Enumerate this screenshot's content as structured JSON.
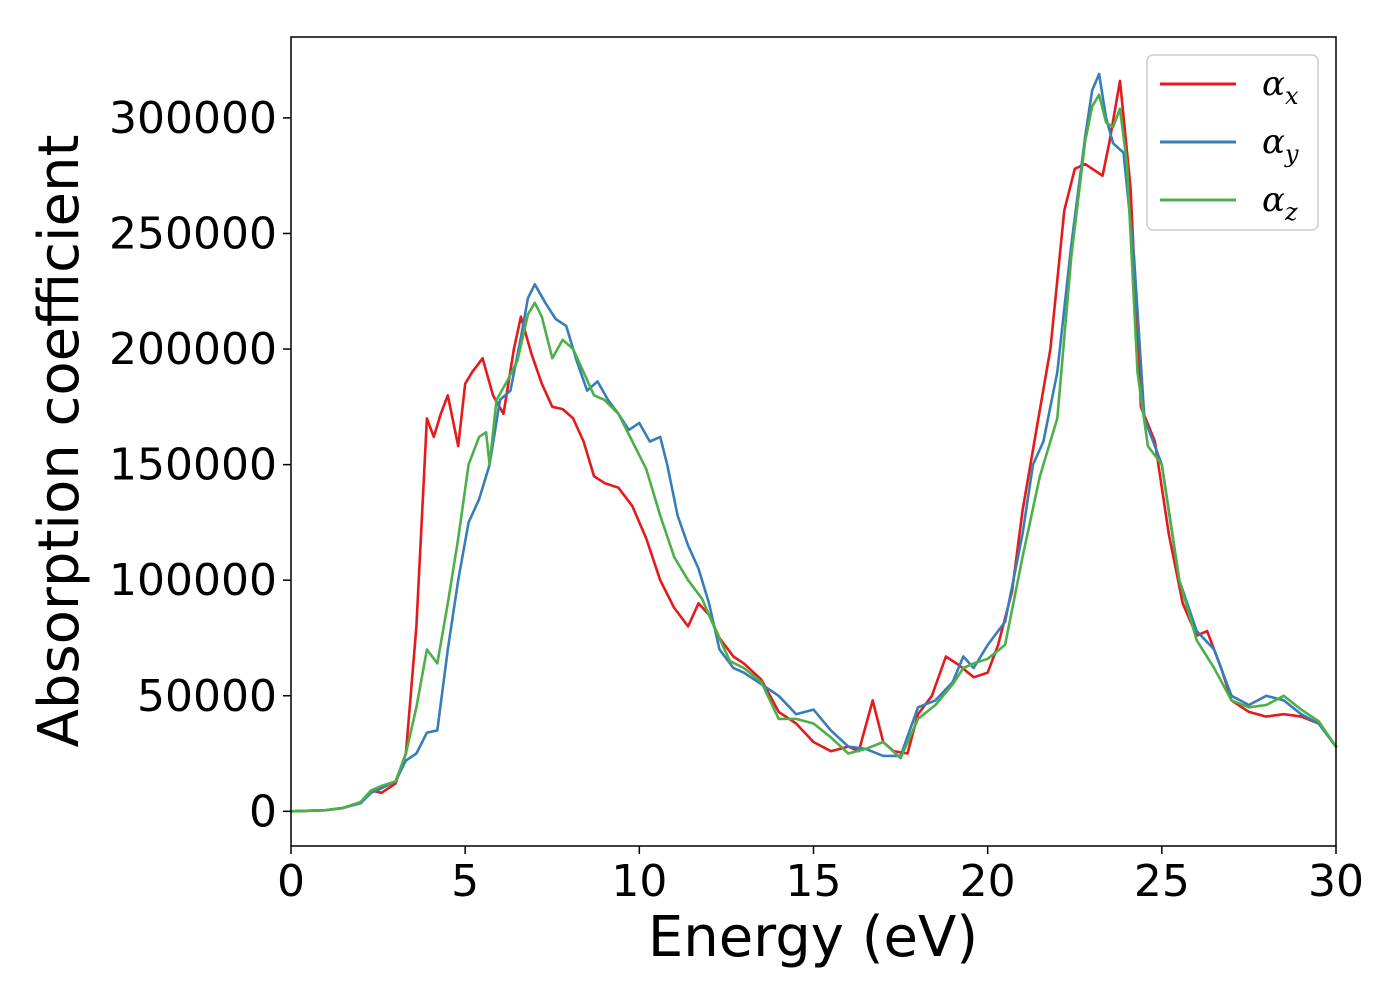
{
  "chart_data": {
    "type": "line",
    "title": "",
    "xlabel": "Energy (eV)",
    "ylabel": "Absorption coefficient",
    "xlim": [
      0,
      30
    ],
    "ylim": [
      -15000,
      335000
    ],
    "xticks": [
      0,
      5,
      10,
      15,
      20,
      25,
      30
    ],
    "xtick_labels": [
      "0",
      "5",
      "10",
      "15",
      "20",
      "25",
      "30"
    ],
    "yticks": [
      0,
      50000,
      100000,
      150000,
      200000,
      250000,
      300000
    ],
    "ytick_labels": [
      "0",
      "50000",
      "100000",
      "150000",
      "200000",
      "250000",
      "300000"
    ],
    "grid": false,
    "legend_position": "top-right",
    "series": [
      {
        "name": "αx",
        "symbol": "α",
        "subscript": "x",
        "color": "#e41a1c",
        "x": [
          0,
          1,
          1.5,
          2,
          2.3,
          2.6,
          3,
          3.3,
          3.6,
          3.9,
          4.1,
          4.3,
          4.5,
          4.8,
          5.0,
          5.2,
          5.5,
          5.8,
          6.1,
          6.4,
          6.6,
          6.9,
          7.2,
          7.5,
          7.8,
          8.1,
          8.4,
          8.7,
          9.0,
          9.4,
          9.8,
          10.2,
          10.6,
          11.0,
          11.4,
          11.7,
          12.0,
          12.3,
          12.7,
          13.0,
          13.5,
          14.0,
          14.5,
          15.0,
          15.5,
          16.0,
          16.3,
          16.7,
          17.0,
          17.3,
          17.7,
          18.0,
          18.4,
          18.8,
          19.2,
          19.6,
          20.0,
          20.3,
          20.7,
          21.0,
          21.4,
          21.8,
          22.2,
          22.5,
          22.8,
          23.0,
          23.3,
          23.5,
          23.8,
          24.1,
          24.4,
          24.8,
          25.2,
          25.6,
          26.0,
          26.3,
          26.7,
          27.0,
          27.5,
          28.0,
          28.5,
          29.0,
          29.5,
          30.0
        ],
        "values": [
          0,
          500,
          1500,
          4000,
          9000,
          8000,
          12000,
          25000,
          80000,
          170000,
          162000,
          172000,
          180000,
          158000,
          185000,
          190000,
          196000,
          180000,
          172000,
          200000,
          214000,
          198000,
          185000,
          175000,
          174000,
          170000,
          160000,
          145000,
          142000,
          140000,
          132000,
          118000,
          100000,
          88000,
          80000,
          90000,
          85000,
          75000,
          67000,
          64000,
          57000,
          43000,
          38000,
          30000,
          26000,
          28000,
          26000,
          48000,
          30000,
          26000,
          25000,
          42000,
          50000,
          67000,
          63000,
          58000,
          60000,
          72000,
          95000,
          130000,
          165000,
          200000,
          260000,
          278000,
          280000,
          278000,
          275000,
          290000,
          316000,
          270000,
          175000,
          160000,
          120000,
          90000,
          76000,
          78000,
          62000,
          48000,
          43000,
          41000,
          42000,
          41000,
          38000,
          28000
        ]
      },
      {
        "name": "αy",
        "symbol": "α",
        "subscript": "y",
        "color": "#377eb8",
        "x": [
          0,
          1,
          1.5,
          2,
          2.3,
          2.6,
          3,
          3.3,
          3.6,
          3.9,
          4.2,
          4.5,
          4.8,
          5.1,
          5.4,
          5.7,
          6.0,
          6.3,
          6.6,
          6.8,
          7.0,
          7.3,
          7.6,
          7.9,
          8.2,
          8.5,
          8.8,
          9.1,
          9.4,
          9.7,
          10.0,
          10.3,
          10.6,
          10.8,
          11.1,
          11.4,
          11.7,
          12.0,
          12.3,
          12.7,
          13.0,
          13.5,
          14.0,
          14.5,
          15.0,
          15.5,
          16.0,
          16.5,
          17.0,
          17.5,
          18.0,
          18.5,
          19.0,
          19.3,
          19.6,
          20.0,
          20.5,
          21.0,
          21.3,
          21.6,
          22.0,
          22.4,
          22.8,
          23.0,
          23.2,
          23.4,
          23.6,
          23.9,
          24.2,
          24.5,
          25.0,
          25.5,
          26.0,
          26.5,
          27.0,
          27.5,
          28.0,
          28.5,
          29.0,
          29.5,
          30.0
        ],
        "values": [
          0,
          500,
          1500,
          3500,
          8000,
          10000,
          13000,
          22000,
          25000,
          34000,
          35000,
          70000,
          100000,
          125000,
          135000,
          150000,
          178000,
          182000,
          205000,
          222000,
          228000,
          220000,
          213000,
          210000,
          195000,
          182000,
          186000,
          178000,
          172000,
          165000,
          168000,
          160000,
          162000,
          150000,
          128000,
          115000,
          105000,
          90000,
          70000,
          62000,
          60000,
          55000,
          50000,
          42000,
          44000,
          35000,
          28000,
          27000,
          24000,
          24000,
          45000,
          48000,
          56000,
          67000,
          62000,
          72000,
          82000,
          120000,
          150000,
          160000,
          190000,
          245000,
          292000,
          312000,
          319000,
          300000,
          289000,
          285000,
          240000,
          170000,
          150000,
          100000,
          78000,
          70000,
          50000,
          46000,
          50000,
          48000,
          42000,
          38000,
          28000
        ]
      },
      {
        "name": "αz",
        "symbol": "α",
        "subscript": "z",
        "color": "#4daf4a",
        "x": [
          0,
          1,
          1.5,
          2,
          2.3,
          2.6,
          3,
          3.3,
          3.6,
          3.9,
          4.2,
          4.5,
          4.8,
          5.1,
          5.4,
          5.6,
          5.7,
          5.9,
          6.2,
          6.5,
          6.8,
          7.0,
          7.2,
          7.5,
          7.8,
          8.1,
          8.4,
          8.7,
          9.0,
          9.4,
          9.8,
          10.2,
          10.6,
          11.0,
          11.4,
          11.8,
          12.2,
          12.6,
          13.0,
          13.5,
          14.0,
          14.5,
          15.0,
          15.5,
          16.0,
          16.5,
          17.0,
          17.5,
          18.0,
          18.5,
          19.0,
          19.3,
          19.6,
          20.0,
          20.5,
          21.0,
          21.5,
          22.0,
          22.4,
          22.8,
          23.0,
          23.2,
          23.4,
          23.6,
          23.8,
          24.0,
          24.3,
          24.6,
          25.0,
          25.5,
          26.0,
          26.5,
          27.0,
          27.5,
          28.0,
          28.5,
          29.0,
          29.5,
          30.0
        ],
        "values": [
          0,
          500,
          1500,
          4000,
          9000,
          11000,
          13000,
          25000,
          45000,
          70000,
          64000,
          90000,
          118000,
          150000,
          162000,
          164000,
          150000,
          178000,
          186000,
          195000,
          215000,
          220000,
          214000,
          196000,
          204000,
          200000,
          190000,
          180000,
          178000,
          172000,
          160000,
          148000,
          128000,
          110000,
          100000,
          92000,
          78000,
          65000,
          62000,
          56000,
          40000,
          40000,
          38000,
          32000,
          25000,
          27000,
          30000,
          23000,
          40000,
          46000,
          55000,
          62000,
          64000,
          66000,
          72000,
          110000,
          145000,
          170000,
          240000,
          290000,
          305000,
          310000,
          298000,
          296000,
          304000,
          280000,
          190000,
          158000,
          150000,
          100000,
          74000,
          62000,
          48000,
          45000,
          46000,
          50000,
          44000,
          39000,
          28000
        ]
      }
    ]
  }
}
